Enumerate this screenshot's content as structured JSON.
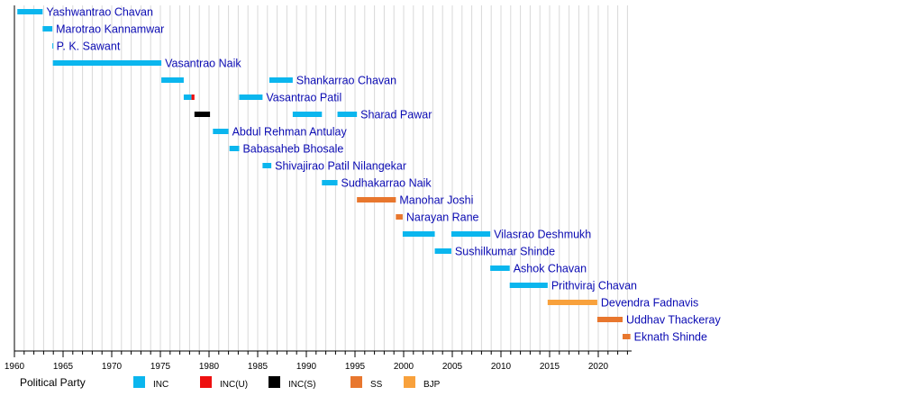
{
  "chart_data": {
    "type": "timeline",
    "title": "",
    "xlabel": "",
    "ylabel": "",
    "xlim": [
      1960,
      2023.5
    ],
    "x_ticks": [
      1960,
      1965,
      1970,
      1975,
      1980,
      1985,
      1990,
      1995,
      2000,
      2005,
      2010,
      2015,
      2020
    ],
    "legend_title": "Political Party",
    "legend_position": "bottom",
    "grid": true,
    "parties": [
      {
        "key": "INC",
        "name": "INC",
        "color": "#0bb6ee"
      },
      {
        "key": "INCU",
        "name": "INC(U)",
        "color": "#ee1010"
      },
      {
        "key": "INCS",
        "name": "INC(S)",
        "color": "#000000"
      },
      {
        "key": "SS",
        "name": "SS",
        "color": "#e8772e"
      },
      {
        "key": "BJP",
        "name": "BJP",
        "color": "#f8a13c"
      }
    ],
    "rows": [
      {
        "name": "Yashwantrao Chavan",
        "terms": [
          {
            "start": 1960.3,
            "end": 1962.9,
            "party": "INC"
          }
        ]
      },
      {
        "name": "Marotrao Kannamwar",
        "terms": [
          {
            "start": 1962.9,
            "end": 1963.9,
            "party": "INC"
          }
        ]
      },
      {
        "name": "P. K. Sawant",
        "terms": [
          {
            "start": 1963.9,
            "end": 1963.95,
            "party": "INC"
          }
        ]
      },
      {
        "name": "Vasantrao Naik",
        "terms": [
          {
            "start": 1963.95,
            "end": 1975.1,
            "party": "INC"
          }
        ]
      },
      {
        "name": "Shankarrao Chavan",
        "terms": [
          {
            "start": 1975.1,
            "end": 1977.4,
            "party": "INC"
          },
          {
            "start": 1986.2,
            "end": 1988.6,
            "party": "INC"
          }
        ]
      },
      {
        "name": "Vasantrao Patil",
        "terms": [
          {
            "start": 1977.4,
            "end": 1978.2,
            "party": "INC"
          },
          {
            "start": 1978.2,
            "end": 1978.5,
            "party": "INCU"
          },
          {
            "start": 1983.1,
            "end": 1985.5,
            "party": "INC"
          }
        ]
      },
      {
        "name": "Sharad Pawar",
        "terms": [
          {
            "start": 1978.5,
            "end": 1980.1,
            "party": "INCS"
          },
          {
            "start": 1988.6,
            "end": 1991.6,
            "party": "INC"
          },
          {
            "start": 1993.2,
            "end": 1995.2,
            "party": "INC"
          }
        ]
      },
      {
        "name": "Abdul Rehman Antulay",
        "terms": [
          {
            "start": 1980.4,
            "end": 1982.0,
            "party": "INC"
          }
        ]
      },
      {
        "name": "Babasaheb Bhosale",
        "terms": [
          {
            "start": 1982.1,
            "end": 1983.1,
            "party": "INC"
          }
        ]
      },
      {
        "name": "Shivajirao Patil Nilangekar",
        "terms": [
          {
            "start": 1985.5,
            "end": 1986.4,
            "party": "INC"
          }
        ]
      },
      {
        "name": "Sudhakarrao Naik",
        "terms": [
          {
            "start": 1991.6,
            "end": 1993.2,
            "party": "INC"
          }
        ]
      },
      {
        "name": "Manohar Joshi",
        "terms": [
          {
            "start": 1995.2,
            "end": 1999.2,
            "party": "SS"
          }
        ]
      },
      {
        "name": "Narayan Rane",
        "terms": [
          {
            "start": 1999.2,
            "end": 1999.9,
            "party": "SS"
          }
        ]
      },
      {
        "name": "Vilasrao Deshmukh",
        "terms": [
          {
            "start": 1999.9,
            "end": 2003.2,
            "party": "INC"
          },
          {
            "start": 2004.9,
            "end": 2008.9,
            "party": "INC"
          }
        ]
      },
      {
        "name": "Sushilkumar Shinde",
        "terms": [
          {
            "start": 2003.2,
            "end": 2004.9,
            "party": "INC"
          }
        ]
      },
      {
        "name": "Ashok Chavan",
        "terms": [
          {
            "start": 2008.9,
            "end": 2010.9,
            "party": "INC"
          }
        ]
      },
      {
        "name": "Prithviraj Chavan",
        "terms": [
          {
            "start": 2010.9,
            "end": 2014.8,
            "party": "INC"
          }
        ]
      },
      {
        "name": "Devendra Fadnavis",
        "terms": [
          {
            "start": 2014.8,
            "end": 2019.9,
            "party": "BJP"
          }
        ]
      },
      {
        "name": "Uddhav Thackeray",
        "terms": [
          {
            "start": 2019.9,
            "end": 2022.5,
            "party": "SS"
          }
        ]
      },
      {
        "name": "Eknath Shinde",
        "terms": [
          {
            "start": 2022.5,
            "end": 2023.3,
            "party": "SS"
          }
        ]
      }
    ]
  }
}
